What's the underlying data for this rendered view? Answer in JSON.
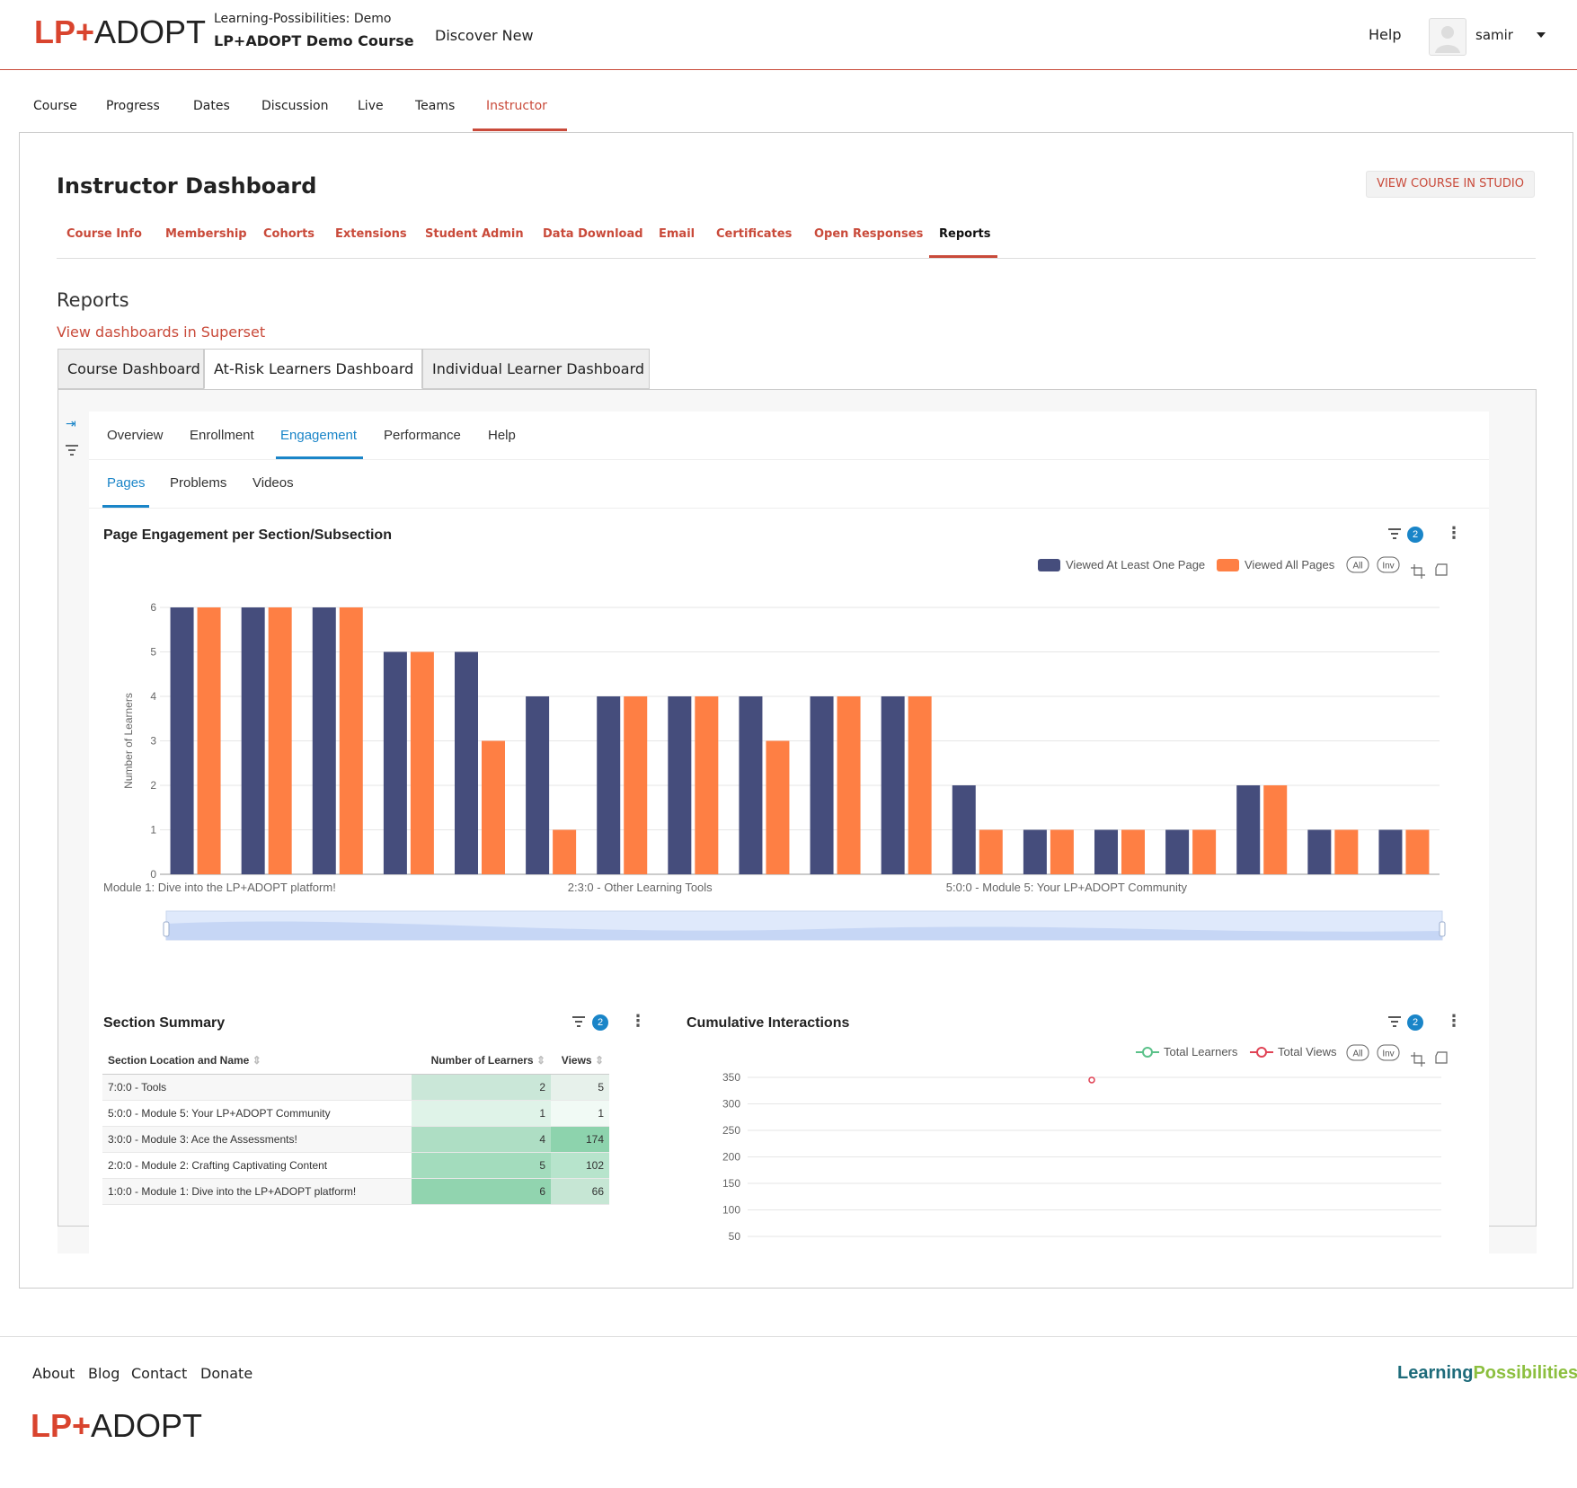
{
  "header": {
    "logo_lp": "LP+",
    "logo_adopt": "ADOPT",
    "course_org": "Learning-Possibilities: Demo",
    "course_title": "LP+ADOPT Demo Course",
    "discover": "Discover New",
    "help": "Help",
    "username": "samir"
  },
  "course_nav": [
    {
      "label": "Course"
    },
    {
      "label": "Progress"
    },
    {
      "label": "Dates"
    },
    {
      "label": "Discussion"
    },
    {
      "label": "Live"
    },
    {
      "label": "Teams"
    },
    {
      "label": "Instructor",
      "active": true
    }
  ],
  "dashboard": {
    "title": "Instructor Dashboard",
    "studio_button": "VIEW COURSE IN STUDIO"
  },
  "instructor_tabs": [
    {
      "label": "Course Info"
    },
    {
      "label": "Membership"
    },
    {
      "label": "Cohorts"
    },
    {
      "label": "Extensions"
    },
    {
      "label": "Student Admin"
    },
    {
      "label": "Data Download"
    },
    {
      "label": "Email"
    },
    {
      "label": "Certificates"
    },
    {
      "label": "Open Responses"
    },
    {
      "label": "Reports",
      "active": true
    }
  ],
  "reports": {
    "title": "Reports",
    "superset_link": "View dashboards in Superset",
    "dashboard_tabs": [
      {
        "label": "Course Dashboard"
      },
      {
        "label": "At-Risk Learners Dashboard",
        "active": true
      },
      {
        "label": "Individual Learner Dashboard"
      }
    ]
  },
  "superset": {
    "tabs": [
      {
        "label": "Overview"
      },
      {
        "label": "Enrollment"
      },
      {
        "label": "Engagement",
        "active": true
      },
      {
        "label": "Performance"
      },
      {
        "label": "Help"
      }
    ],
    "subtabs": [
      {
        "label": "Pages",
        "active": true
      },
      {
        "label": "Problems"
      },
      {
        "label": "Videos"
      }
    ],
    "filter_count": "2"
  },
  "chart_data": [
    {
      "type": "bar",
      "title": "Page Engagement per Section/Subsection",
      "ylabel": "Number of Learners",
      "ylim": [
        0,
        6
      ],
      "yticks": [
        "0",
        "1",
        "2",
        "3",
        "4",
        "5",
        "6"
      ],
      "x_tick_labels": [
        "Module 1: Dive into the LP+ADOPT platform!",
        "2:3:0 - Other Learning Tools",
        "5:0:0 - Module 5: Your LP+ADOPT Community"
      ],
      "legend_position": "top-right",
      "legend_extra": [
        "All",
        "Inv"
      ],
      "series": [
        {
          "name": "Viewed At Least One Page",
          "color": "#454d7c",
          "values": [
            6,
            6,
            6,
            5,
            5,
            4,
            4,
            4,
            4,
            4,
            4,
            2,
            1,
            1,
            1,
            2,
            1,
            1
          ]
        },
        {
          "name": "Viewed All Pages",
          "color": "#fe7f44",
          "values": [
            6,
            6,
            6,
            5,
            3,
            1,
            4,
            4,
            3,
            4,
            4,
            1,
            1,
            1,
            1,
            2,
            1,
            1
          ]
        }
      ],
      "grid": true,
      "zoom_slider": true
    },
    {
      "type": "line",
      "title": "Cumulative Interactions",
      "ylim": [
        50,
        350
      ],
      "yticks": [
        "350",
        "300",
        "250",
        "200",
        "150",
        "100",
        "50"
      ],
      "legend_position": "top-right",
      "legend_extra": [
        "All",
        "Inv"
      ],
      "series": [
        {
          "name": "Total Learners",
          "color": "#5ac189",
          "values": []
        },
        {
          "name": "Total Views",
          "color": "#e04355",
          "values": [
            345
          ]
        }
      ],
      "grid": true
    }
  ],
  "section_summary": {
    "title": "Section Summary",
    "columns": [
      "Section Location and Name",
      "Number of Learners",
      "Views"
    ],
    "rows": [
      {
        "name": "7:0:0 - Tools",
        "learners": "2",
        "views": "5",
        "learners_level": 0.33,
        "views_level": 0.03
      },
      {
        "name": "5:0:0 - Module 5: Your LP+ADOPT Community",
        "learners": "1",
        "views": "1",
        "learners_level": 0.17,
        "views_level": 0.01
      },
      {
        "name": "3:0:0 - Module 3: Ace the Assessments!",
        "learners": "4",
        "views": "174",
        "learners_level": 0.67,
        "views_level": 1.0
      },
      {
        "name": "2:0:0 - Module 2: Crafting Captivating Content",
        "learners": "5",
        "views": "102",
        "learners_level": 0.83,
        "views_level": 0.59
      },
      {
        "name": "1:0:0 - Module 1: Dive into the LP+ADOPT platform!",
        "learners": "6",
        "views": "66",
        "learners_level": 1.0,
        "views_level": 0.38
      }
    ]
  },
  "footer": {
    "links": [
      {
        "label": "About"
      },
      {
        "label": "Blog"
      },
      {
        "label": "Contact"
      },
      {
        "label": "Donate"
      }
    ],
    "logo_lp": "LP+",
    "logo_adopt": "ADOPT",
    "partner_a": "Learning",
    "partner_b": "Possibilities"
  },
  "icons": {
    "filter": "filter-icon",
    "kebab": "more-vertical-icon",
    "collapse": "expand-sidebar-icon",
    "avatar": "user-avatar-icon"
  },
  "colors": {
    "brand": "#c94a3a",
    "superset_accent": "#1a85c8"
  }
}
